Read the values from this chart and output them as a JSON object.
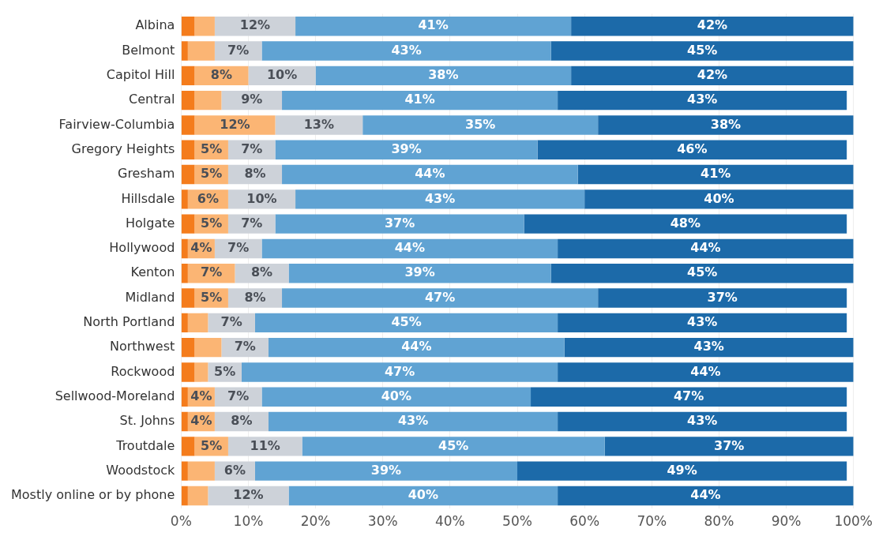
{
  "chart_data": {
    "type": "bar",
    "orientation": "horizontal",
    "stacked": true,
    "categories": [
      "Albina",
      "Belmont",
      "Capitol Hill",
      "Central",
      "Fairview-Columbia",
      "Gregory Heights",
      "Gresham",
      "Hillsdale",
      "Holgate",
      "Hollywood",
      "Kenton",
      "Midland",
      "North Portland",
      "Northwest",
      "Rockwood",
      "Sellwood-Moreland",
      "St. Johns",
      "Troutdale",
      "Woodstock",
      "Mostly online or by phone"
    ],
    "series": [
      {
        "color": "#f47c1c",
        "values": [
          2,
          1,
          2,
          2,
          2,
          2,
          2,
          1,
          2,
          1,
          1,
          2,
          1,
          2,
          2,
          1,
          1,
          2,
          1,
          1
        ],
        "value_labels": [
          null,
          null,
          null,
          null,
          null,
          null,
          null,
          null,
          null,
          null,
          null,
          null,
          null,
          null,
          null,
          null,
          null,
          null,
          null,
          null
        ]
      },
      {
        "color": "#fbb574",
        "values": [
          3,
          4,
          8,
          4,
          12,
          5,
          5,
          6,
          5,
          4,
          7,
          5,
          3,
          4,
          2,
          4,
          4,
          5,
          4,
          3
        ],
        "value_labels": [
          null,
          null,
          "8%",
          null,
          "12%",
          "5%",
          "5%",
          "6%",
          "5%",
          "4%",
          "7%",
          "5%",
          null,
          null,
          null,
          "4%",
          "4%",
          "5%",
          null,
          null
        ]
      },
      {
        "color": "#cdd2d9",
        "values": [
          12,
          7,
          10,
          9,
          13,
          7,
          8,
          10,
          7,
          7,
          8,
          8,
          7,
          7,
          5,
          7,
          8,
          11,
          6,
          12
        ],
        "value_labels": [
          "12%",
          "7%",
          "10%",
          "9%",
          "13%",
          "7%",
          "8%",
          "10%",
          "7%",
          "7%",
          "8%",
          "8%",
          "7%",
          "7%",
          "5%",
          "7%",
          "8%",
          "11%",
          "6%",
          "12%"
        ]
      },
      {
        "color": "#60a3d3",
        "values": [
          41,
          43,
          38,
          41,
          35,
          39,
          44,
          43,
          37,
          44,
          39,
          47,
          45,
          44,
          47,
          40,
          43,
          45,
          39,
          40
        ],
        "value_labels": [
          "41%",
          "43%",
          "38%",
          "41%",
          "35%",
          "39%",
          "44%",
          "43%",
          "37%",
          "44%",
          "39%",
          "47%",
          "45%",
          "44%",
          "47%",
          "40%",
          "43%",
          "45%",
          "39%",
          "40%"
        ]
      },
      {
        "color": "#1c6aa9",
        "values": [
          42,
          45,
          42,
          43,
          38,
          46,
          41,
          40,
          48,
          44,
          45,
          37,
          43,
          43,
          44,
          47,
          43,
          37,
          49,
          44
        ],
        "value_labels": [
          "42%",
          "45%",
          "42%",
          "43%",
          "38%",
          "46%",
          "41%",
          "40%",
          "48%",
          "44%",
          "45%",
          "37%",
          "43%",
          "43%",
          "44%",
          "47%",
          "43%",
          "37%",
          "49%",
          "44%"
        ]
      }
    ],
    "xlim": [
      0,
      100
    ],
    "xticks": [
      {
        "value": 0,
        "label": "0%"
      },
      {
        "value": 10,
        "label": "10%"
      },
      {
        "value": 20,
        "label": "20%"
      },
      {
        "value": 30,
        "label": "30%"
      },
      {
        "value": 40,
        "label": "40%"
      },
      {
        "value": 50,
        "label": "50%"
      },
      {
        "value": 60,
        "label": "60%"
      },
      {
        "value": 70,
        "label": "70%"
      },
      {
        "value": 80,
        "label": "80%"
      },
      {
        "value": 90,
        "label": "90%"
      },
      {
        "value": 100,
        "label": "100%"
      }
    ],
    "grid": "x",
    "legend": false
  }
}
